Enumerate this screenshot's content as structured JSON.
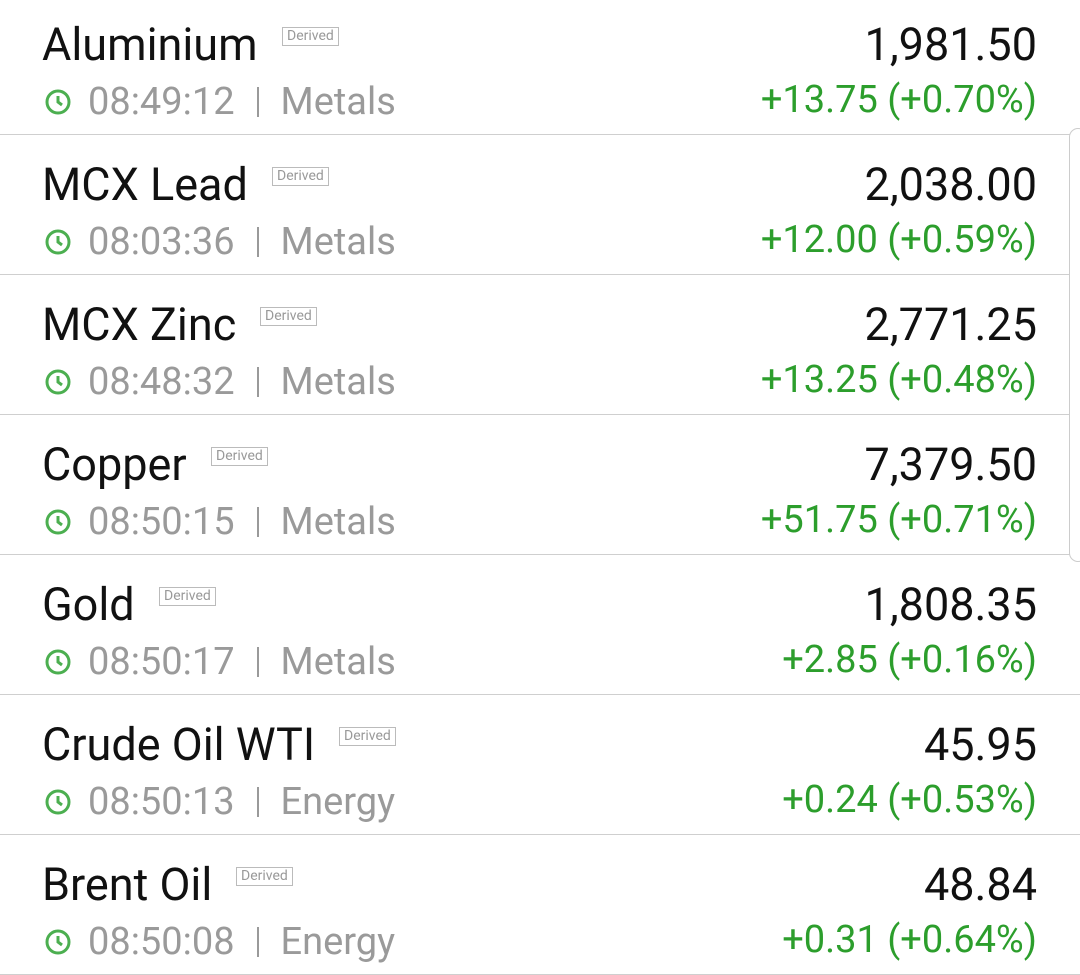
{
  "list": {
    "rows": [
      {
        "name": "Aluminium",
        "badge": "Derived",
        "time": "08:49:12",
        "category": "Metals",
        "price": "1,981.50",
        "change": "+13.75 (+0.70%)"
      },
      {
        "name": "MCX Lead",
        "badge": "Derived",
        "time": "08:03:36",
        "category": "Metals",
        "price": "2,038.00",
        "change": "+12.00 (+0.59%)"
      },
      {
        "name": "MCX Zinc",
        "badge": "Derived",
        "time": "08:48:32",
        "category": "Metals",
        "price": "2,771.25",
        "change": "+13.25 (+0.48%)"
      },
      {
        "name": "Copper",
        "badge": "Derived",
        "time": "08:50:15",
        "category": "Metals",
        "price": "7,379.50",
        "change": "+51.75 (+0.71%)"
      },
      {
        "name": "Gold",
        "badge": "Derived",
        "time": "08:50:17",
        "category": "Metals",
        "price": "1,808.35",
        "change": "+2.85 (+0.16%)"
      },
      {
        "name": "Crude Oil WTI",
        "badge": "Derived",
        "time": "08:50:13",
        "category": "Energy",
        "price": "45.95",
        "change": "+0.24 (+0.53%)"
      },
      {
        "name": "Brent Oil",
        "badge": "Derived",
        "time": "08:50:08",
        "category": "Energy",
        "price": "48.84",
        "change": "+0.31 (+0.64%)"
      }
    ]
  }
}
